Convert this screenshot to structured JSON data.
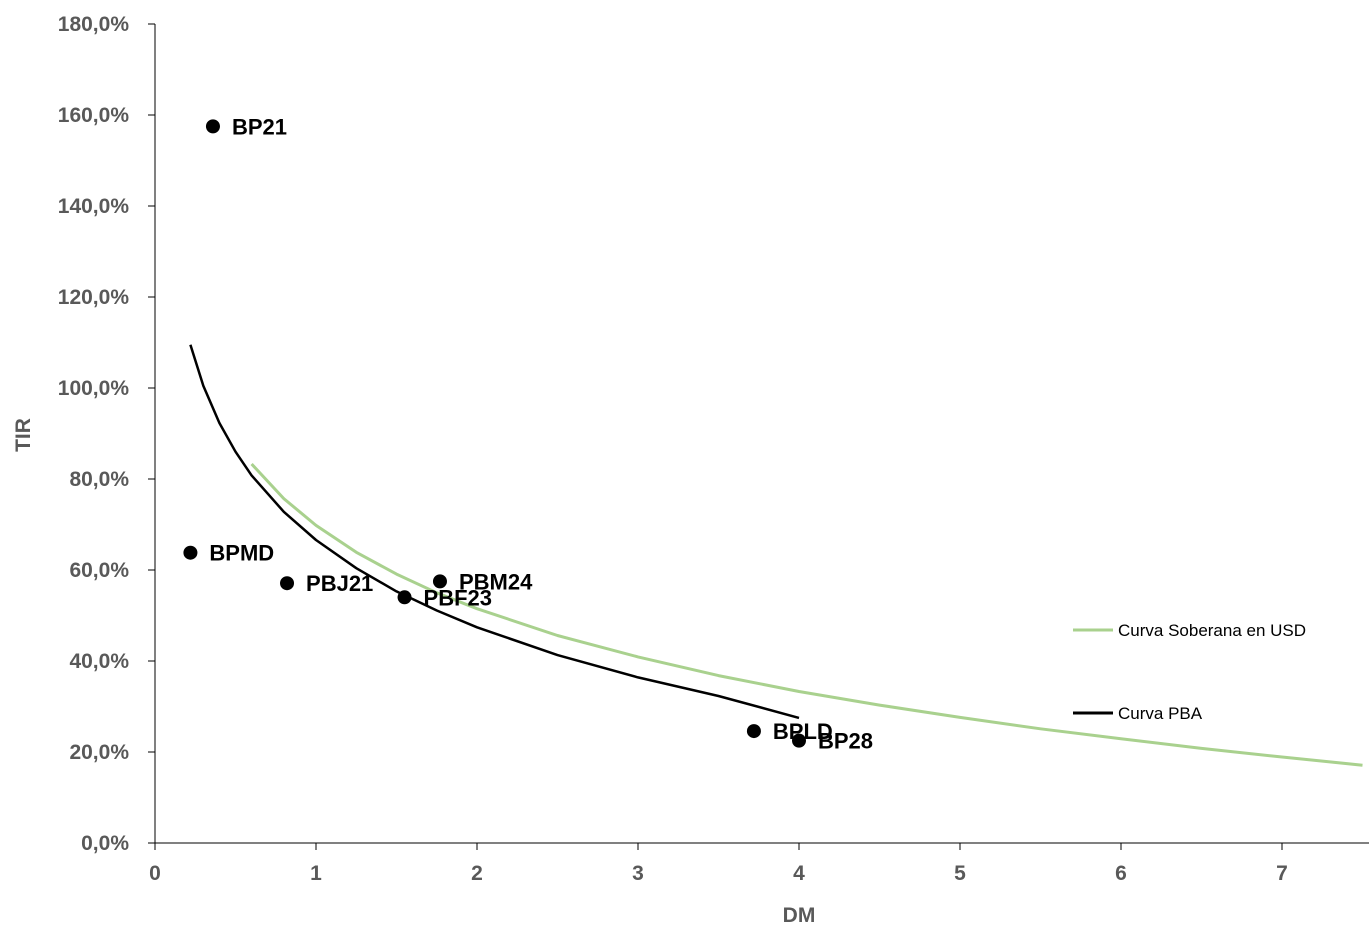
{
  "chart_data": {
    "type": "scatter",
    "title": "",
    "xlabel": "DM",
    "ylabel": "TIR",
    "xlim": [
      0,
      7.5
    ],
    "ylim": [
      0,
      180
    ],
    "x_ticks": [
      0,
      1,
      2,
      3,
      4,
      5,
      6,
      7
    ],
    "x_tick_labels": [
      "0",
      "1",
      "2",
      "3",
      "4",
      "5",
      "6",
      "7"
    ],
    "y_ticks": [
      0,
      20,
      40,
      60,
      80,
      100,
      120,
      140,
      160,
      180
    ],
    "y_tick_labels": [
      "0,0%",
      "20,0%",
      "40,0%",
      "60,0%",
      "80,0%",
      "100,0%",
      "120,0%",
      "140,0%",
      "160,0%",
      "180,0%"
    ],
    "grid": false,
    "legend_position": "right",
    "points": [
      {
        "label": "BP21",
        "x": 0.36,
        "y": 157.5
      },
      {
        "label": "BPMD",
        "x": 0.22,
        "y": 63.8
      },
      {
        "label": "PBJ21",
        "x": 0.82,
        "y": 57.1
      },
      {
        "label": "PBF23",
        "x": 1.55,
        "y": 54.0
      },
      {
        "label": "PBM24",
        "x": 1.77,
        "y": 57.5
      },
      {
        "label": "BPLD",
        "x": 3.72,
        "y": 24.6
      },
      {
        "label": "BP28",
        "x": 4.0,
        "y": 22.5
      }
    ],
    "series": [
      {
        "name": "Curva Soberana en USD",
        "color": "#a9d18e",
        "x": [
          0.6,
          0.8,
          1.0,
          1.25,
          1.5,
          1.75,
          2.0,
          2.5,
          3.0,
          3.5,
          4.0,
          4.5,
          5.0,
          5.5,
          6.0,
          6.5,
          7.0,
          7.5
        ],
        "y": [
          83.3,
          75.7,
          69.8,
          63.9,
          59.1,
          55.0,
          51.5,
          45.6,
          40.9,
          36.8,
          33.3,
          30.3,
          27.6,
          25.1,
          22.9,
          20.8,
          18.9,
          17.1
        ]
      },
      {
        "name": "Curva PBA",
        "color": "#000000",
        "x": [
          0.22,
          0.3,
          0.4,
          0.5,
          0.6,
          0.8,
          1.0,
          1.25,
          1.5,
          1.75,
          2.0,
          2.5,
          3.0,
          3.5,
          4.0
        ],
        "y": [
          109.5,
          100.5,
          92.3,
          86.0,
          80.8,
          72.8,
          66.6,
          60.4,
          55.3,
          51.1,
          47.4,
          41.3,
          36.4,
          32.3,
          27.5
        ]
      }
    ]
  }
}
